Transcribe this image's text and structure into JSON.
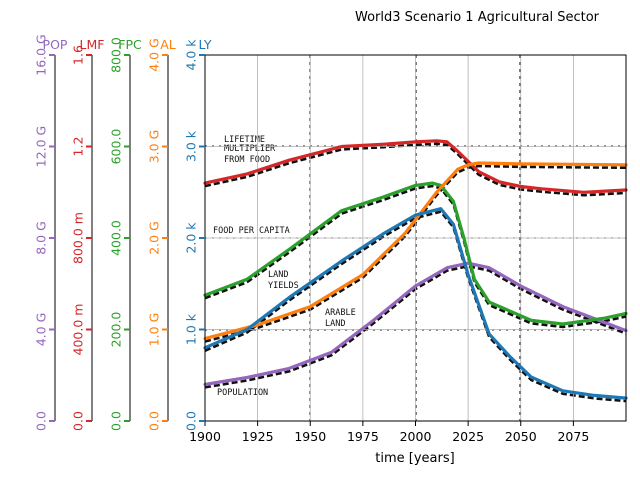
{
  "chart_data": {
    "type": "line",
    "title": "World3 Scenario 1 Agricultural Sector",
    "xlabel": "time [years]",
    "xlim": [
      1900,
      2100
    ],
    "x_ticks": [
      "1900",
      "1925",
      "1950",
      "1975",
      "2000",
      "2025",
      "2050",
      "2075"
    ],
    "grid": true,
    "background_scan_labels": [
      "LIFETIME",
      "MULTIPLIER",
      "FROM FOOD",
      "FOOD PER CAPITA",
      "LAND",
      "YIELDS",
      "ARABLE",
      "LAND",
      "POPULATION"
    ],
    "axes": [
      {
        "label": "POP",
        "color": "#9467bd",
        "ylim": [
          0,
          16000000000
        ],
        "tick_labels": [
          "0.0",
          "4.0 G",
          "8.0 G",
          "12.0 G",
          "16.0 G"
        ]
      },
      {
        "label": "LMF",
        "color": "#d62728",
        "ylim": [
          0,
          1.6
        ],
        "tick_labels": [
          "0.0",
          "400.0 m",
          "800.0 m",
          "1.2",
          "1.6"
        ]
      },
      {
        "label": "FPC",
        "color": "#2ca02c",
        "ylim": [
          0,
          800
        ],
        "tick_labels": [
          "0.0",
          "200.0",
          "400.0",
          "600.0",
          "800.0"
        ]
      },
      {
        "label": "AL",
        "color": "#ff7f0e",
        "ylim": [
          0,
          4000000000
        ],
        "tick_labels": [
          "0.0",
          "1.0 G",
          "2.0 G",
          "3.0 G",
          "4.0 G"
        ]
      },
      {
        "label": "LY",
        "color": "#1f77b4",
        "ylim": [
          0,
          4000
        ],
        "tick_labels": [
          "0.0",
          "1.0 k",
          "2.0 k",
          "3.0 k",
          "4.0 k"
        ]
      }
    ],
    "series": [
      {
        "name": "POP",
        "color": "#9467bd",
        "x": [
          1900,
          1920,
          1940,
          1960,
          1980,
          2000,
          2015,
          2025,
          2035,
          2050,
          2070,
          2090,
          2100
        ],
        "values": [
          1600000000,
          1900000000,
          2300000000,
          3000000000,
          4400000000,
          5900000000,
          6700000000,
          6900000000,
          6700000000,
          5900000000,
          5000000000,
          4300000000,
          3950000000
        ]
      },
      {
        "name": "LMF",
        "color": "#d62728",
        "x": [
          1900,
          1920,
          1940,
          1965,
          1985,
          2000,
          2010,
          2015,
          2020,
          2030,
          2040,
          2050,
          2060,
          2080,
          2090,
          2100
        ],
        "values": [
          1.04,
          1.08,
          1.14,
          1.2,
          1.21,
          1.22,
          1.225,
          1.22,
          1.18,
          1.09,
          1.045,
          1.025,
          1.015,
          1.0,
          1.005,
          1.01
        ]
      },
      {
        "name": "FPC",
        "color": "#2ca02c",
        "x": [
          1900,
          1920,
          1940,
          1965,
          1985,
          2000,
          2008,
          2012,
          2018,
          2023,
          2028,
          2035,
          2045,
          2055,
          2070,
          2090,
          2100
        ],
        "values": [
          275,
          310,
          375,
          460,
          490,
          515,
          520,
          515,
          480,
          400,
          310,
          260,
          240,
          220,
          212,
          225,
          235
        ]
      },
      {
        "name": "AL",
        "color": "#ff7f0e",
        "x": [
          1900,
          1925,
          1950,
          1975,
          1995,
          2010,
          2020,
          2025,
          2030,
          2050,
          2100
        ],
        "values": [
          900000000,
          1050000000,
          1250000000,
          1600000000,
          2050000000,
          2500000000,
          2750000000,
          2800000000,
          2820000000,
          2810000000,
          2800000000
        ]
      },
      {
        "name": "LY",
        "color": "#1f77b4",
        "x": [
          1900,
          1920,
          1940,
          1965,
          1985,
          2000,
          2012,
          2018,
          2025,
          2035,
          2045,
          2055,
          2070,
          2085,
          2100
        ],
        "values": [
          800,
          1000,
          1350,
          1750,
          2050,
          2250,
          2320,
          2150,
          1600,
          950,
          700,
          480,
          330,
          280,
          250
        ]
      }
    ]
  }
}
